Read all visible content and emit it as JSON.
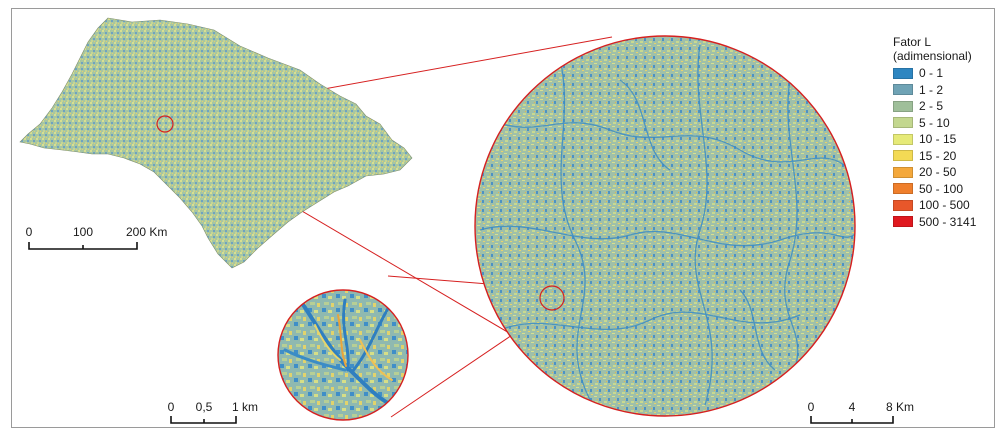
{
  "legend": {
    "title_line1": "Fator L",
    "title_line2": "(adimensional)",
    "classes": [
      {
        "label": "0 - 1",
        "color": "#2e86c1"
      },
      {
        "label": "1 - 2",
        "color": "#6fa3b5"
      },
      {
        "label": "2 - 5",
        "color": "#9fbf9a"
      },
      {
        "label": "5 - 10",
        "color": "#c3d78f"
      },
      {
        "label": "10 - 15",
        "color": "#e6ea78"
      },
      {
        "label": "15 - 20",
        "color": "#f3da55"
      },
      {
        "label": "20 - 50",
        "color": "#f4a83b"
      },
      {
        "label": "50 - 100",
        "color": "#ef7f2c"
      },
      {
        "label": "100 - 500",
        "color": "#e8572a"
      },
      {
        "label": "500 - 3141",
        "color": "#e0191f"
      }
    ]
  },
  "scalebars": {
    "state": {
      "ticks": [
        "0",
        "100",
        "200 Km"
      ]
    },
    "zoom_small": {
      "ticks": [
        "0",
        "0,5",
        "1 km"
      ]
    },
    "zoom_large": {
      "ticks": [
        "0",
        "4",
        "8 Km"
      ]
    }
  },
  "colors": {
    "callout_line": "#d62020",
    "state_fill": "#a9c38f",
    "terrain_base": "#9fbfa0",
    "drainage": "#3a8cc6"
  }
}
